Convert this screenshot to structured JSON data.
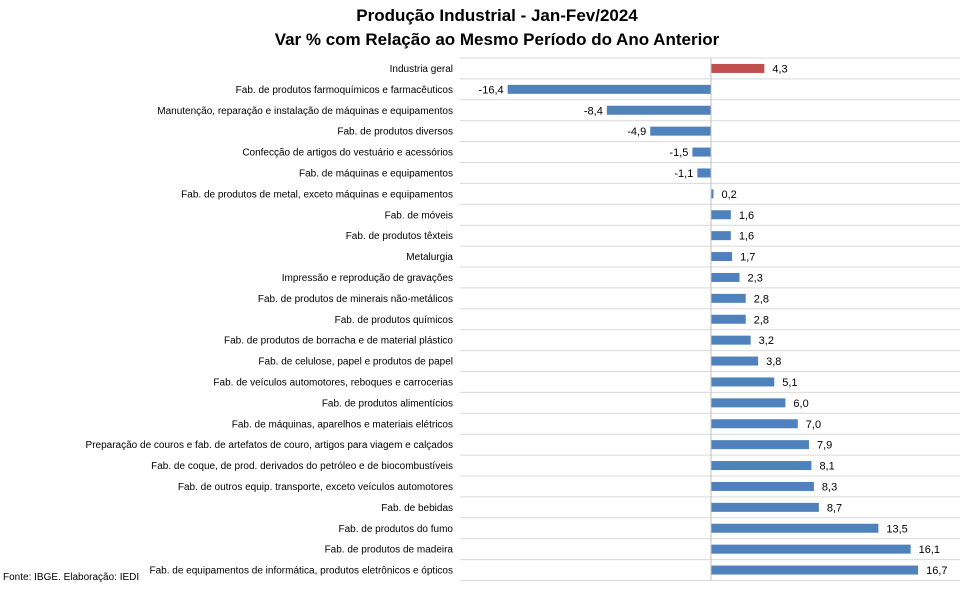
{
  "chart_data": {
    "type": "bar",
    "orientation": "horizontal",
    "title": "Produção Industrial - Jan-Fev/2024",
    "subtitle": "Var % com Relação ao Mesmo  Período do Ano Anterior",
    "categories": [
      "Industria geral",
      "Fab. de produtos farmoquímicos e farmacêuticos",
      "Manutenção, reparação e instalação de máquinas e equipamentos",
      "Fab. de produtos diversos",
      "Confecção de artigos do vestuário e acessórios",
      "Fab. de máquinas e equipamentos",
      "Fab. de produtos de metal, exceto máquinas e equipamentos",
      "Fab. de móveis",
      "Fab. de produtos têxteis",
      "Metalurgia",
      "Impressão e reprodução de gravações",
      "Fab. de produtos de minerais não-metálicos",
      "Fab. de produtos químicos",
      "Fab. de produtos de borracha e de material plástico",
      "Fab. de celulose, papel e produtos de papel",
      "Fab. de veículos automotores, reboques e carrocerias",
      "Fab. de produtos alimentícios",
      "Fab. de máquinas, aparelhos e materiais elétricos",
      "Preparação de couros e fab. de artefatos de couro, artigos para viagem e calçados",
      "Fab. de coque, de prod. derivados do petróleo e de biocombustíveis",
      "Fab. de outros equip. transporte, exceto veículos automotores",
      "Fab. de bebidas",
      "Fab. de produtos do fumo",
      "Fab. de produtos de madeira",
      "Fab. de equipamentos de informática, produtos eletrônicos e ópticos"
    ],
    "values": [
      4.3,
      -16.4,
      -8.4,
      -4.9,
      -1.5,
      -1.1,
      0.2,
      1.6,
      1.6,
      1.7,
      2.3,
      2.8,
      2.8,
      3.2,
      3.8,
      5.1,
      6.0,
      7.0,
      7.9,
      8.1,
      8.3,
      8.7,
      13.5,
      16.1,
      16.7
    ],
    "value_labels": [
      "4,3",
      "-16,4",
      "-8,4",
      "-4,9",
      "-1,5",
      "-1,1",
      "0,2",
      "1,6",
      "1,6",
      "1,7",
      "2,3",
      "2,8",
      "2,8",
      "3,2",
      "3,8",
      "5,1",
      "6,0",
      "7,0",
      "7,9",
      "8,1",
      "8,3",
      "8,7",
      "13,5",
      "16,1",
      "16,7"
    ],
    "highlight_index": 0,
    "xlim": [
      -20,
      20
    ],
    "grid": true,
    "legend": "none",
    "colors": {
      "highlight": "#c0504d",
      "bar": "#4f81bd",
      "grid": "#d9d9d9"
    }
  },
  "source": "Fonte: IBGE. Elaboração: IEDI"
}
